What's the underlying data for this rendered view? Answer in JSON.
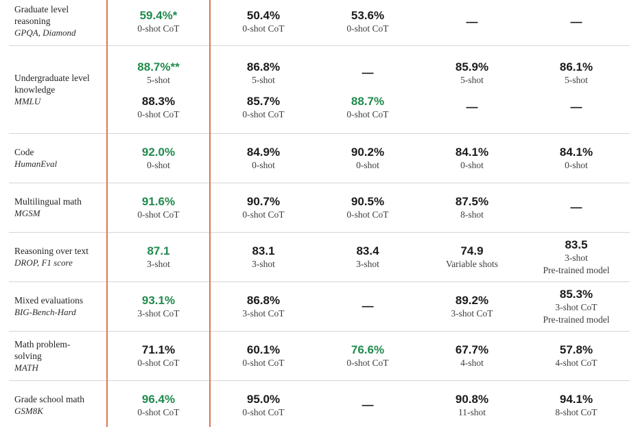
{
  "colors": {
    "highlight_border": "#d9774f",
    "best_value": "#1f8a4c",
    "divider": "#d5d5d5"
  },
  "rows": [
    {
      "name": "Graduate level reasoning",
      "sub": "GPQA, Diamond",
      "cells": [
        {
          "value": "59.4%*",
          "note": "0-shot CoT",
          "best": true
        },
        {
          "value": "50.4%",
          "note": "0-shot CoT"
        },
        {
          "value": "53.6%",
          "note": "0-shot CoT"
        },
        {
          "value": "—",
          "note": ""
        },
        {
          "value": "—",
          "note": ""
        }
      ]
    },
    {
      "name": "Undergraduate level knowledge",
      "sub": "MMLU",
      "cells": [
        {
          "value": "88.7%**",
          "note": "5-shot",
          "best": true,
          "value2": "88.3%",
          "note2": "0-shot CoT"
        },
        {
          "value": "86.8%",
          "note": "5-shot",
          "value2": "85.7%",
          "note2": "0-shot CoT"
        },
        {
          "value": "—",
          "note": "",
          "value2": "88.7%",
          "note2": "0-shot CoT",
          "best2": true
        },
        {
          "value": "85.9%",
          "note": "5-shot",
          "value2": "—",
          "note2": ""
        },
        {
          "value": "86.1%",
          "note": "5-shot",
          "value2": "—",
          "note2": ""
        }
      ]
    },
    {
      "name": "Code",
      "sub": "HumanEval",
      "cells": [
        {
          "value": "92.0%",
          "note": "0-shot",
          "best": true
        },
        {
          "value": "84.9%",
          "note": "0-shot"
        },
        {
          "value": "90.2%",
          "note": "0-shot"
        },
        {
          "value": "84.1%",
          "note": "0-shot"
        },
        {
          "value": "84.1%",
          "note": "0-shot"
        }
      ]
    },
    {
      "name": "Multilingual math",
      "sub": "MGSM",
      "cells": [
        {
          "value": "91.6%",
          "note": "0-shot CoT",
          "best": true
        },
        {
          "value": "90.7%",
          "note": "0-shot CoT"
        },
        {
          "value": "90.5%",
          "note": "0-shot CoT"
        },
        {
          "value": "87.5%",
          "note": "8-shot"
        },
        {
          "value": "—",
          "note": ""
        }
      ]
    },
    {
      "name": "Reasoning over text",
      "sub": "DROP, F1 score",
      "cells": [
        {
          "value": "87.1",
          "note": "3-shot",
          "best": true
        },
        {
          "value": "83.1",
          "note": "3-shot"
        },
        {
          "value": "83.4",
          "note": "3-shot"
        },
        {
          "value": "74.9",
          "note": "Variable shots"
        },
        {
          "value": "83.5",
          "note": "3-shot",
          "note_extra": "Pre-trained model"
        }
      ]
    },
    {
      "name": "Mixed evaluations",
      "sub": "BIG-Bench-Hard",
      "cells": [
        {
          "value": "93.1%",
          "note": "3-shot CoT",
          "best": true
        },
        {
          "value": "86.8%",
          "note": "3-shot CoT"
        },
        {
          "value": "—",
          "note": ""
        },
        {
          "value": "89.2%",
          "note": "3-shot CoT"
        },
        {
          "value": "85.3%",
          "note": "3-shot CoT",
          "note_extra": "Pre-trained model"
        }
      ]
    },
    {
      "name": "Math problem-solving",
      "sub": "MATH",
      "cells": [
        {
          "value": "71.1%",
          "note": "0-shot CoT"
        },
        {
          "value": "60.1%",
          "note": "0-shot CoT"
        },
        {
          "value": "76.6%",
          "note": "0-shot CoT",
          "best": true
        },
        {
          "value": "67.7%",
          "note": "4-shot"
        },
        {
          "value": "57.8%",
          "note": "4-shot CoT"
        }
      ]
    },
    {
      "name": "Grade school math",
      "sub": "GSM8K",
      "cells": [
        {
          "value": "96.4%",
          "note": "0-shot CoT",
          "best": true
        },
        {
          "value": "95.0%",
          "note": "0-shot CoT"
        },
        {
          "value": "—",
          "note": ""
        },
        {
          "value": "90.8%",
          "note": "11-shot"
        },
        {
          "value": "94.1%",
          "note": "8-shot CoT"
        }
      ]
    }
  ]
}
